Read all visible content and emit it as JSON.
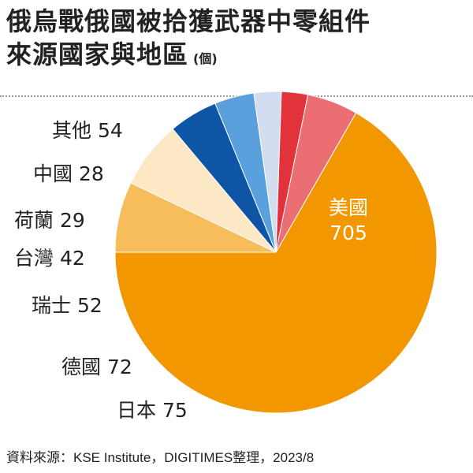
{
  "header": {
    "title_line1": "俄烏戰俄國被拾獲武器中零組件",
    "title_line2": "來源國家與地區",
    "unit": "(個)"
  },
  "chart_data": {
    "type": "pie",
    "title": "俄烏戰俄國被拾獲武器中零組件來源國家與地區",
    "unit": "(個)",
    "slices": [
      {
        "label": "美國",
        "value": 705,
        "color": "#f29700"
      },
      {
        "label": "日本",
        "value": 75,
        "color": "#f6bd5a"
      },
      {
        "label": "德國",
        "value": 72,
        "color": "#fde8c6"
      },
      {
        "label": "瑞士",
        "value": 52,
        "color": "#0f55a5"
      },
      {
        "label": "台灣",
        "value": 42,
        "color": "#5aa0dc"
      },
      {
        "label": "荷蘭",
        "value": 29,
        "color": "#d2def0"
      },
      {
        "label": "中國",
        "value": 28,
        "color": "#e2323c"
      },
      {
        "label": "其他",
        "value": 54,
        "color": "#ea6e72"
      }
    ]
  },
  "labels": {
    "usa_name": "美國",
    "usa_value": "705",
    "japan": "日本 75",
    "germany": "德國 72",
    "switzerland": "瑞士 52",
    "taiwan": "台灣 42",
    "netherlands": "荷蘭 29",
    "china": "中國 28",
    "other": "其他 54"
  },
  "source": "資料來源：KSE Institute，DIGITIMES整理，2023/8"
}
